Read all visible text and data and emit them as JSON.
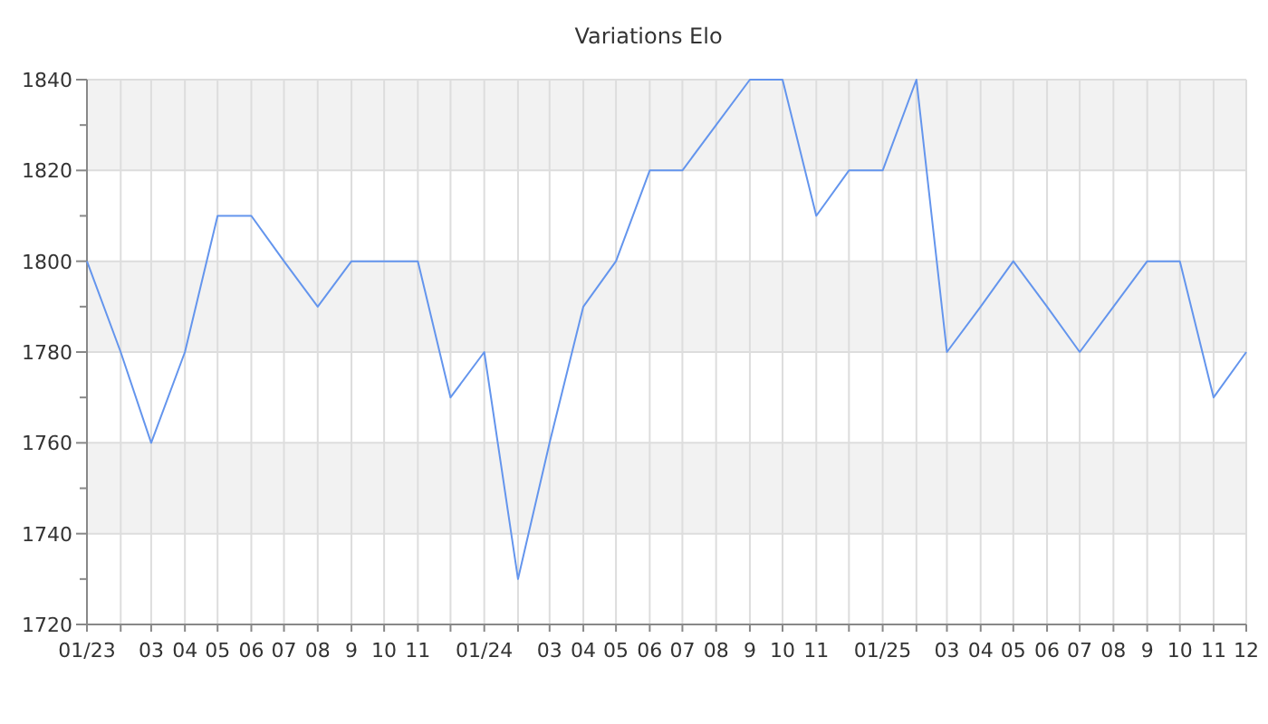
{
  "chart_data": {
    "type": "line",
    "title": "Variations Elo",
    "x": [
      "2023-01",
      "2023-02",
      "2023-03",
      "2023-04",
      "2023-05",
      "2023-06",
      "2023-07",
      "2023-08",
      "2023-09",
      "2023-10",
      "2023-11",
      "2023-12",
      "2024-01",
      "2024-02",
      "2024-03",
      "2024-04",
      "2024-05",
      "2024-06",
      "2024-07",
      "2024-08",
      "2024-09",
      "2024-10",
      "2024-11",
      "2024-12",
      "2025-01",
      "2025-02",
      "2025-03",
      "2025-04",
      "2025-05",
      "2025-06",
      "2025-07",
      "2025-08",
      "2025-09",
      "2025-10",
      "2025-11",
      "2025-12"
    ],
    "series": [
      {
        "color": "#6495ed",
        "values": [
          1800,
          1780,
          1760,
          1780,
          1810,
          1810,
          1800,
          1790,
          1800,
          1800,
          1800,
          1770,
          1780,
          1730,
          1760,
          1790,
          1800,
          1820,
          1820,
          1830,
          1840,
          1840,
          1810,
          1820,
          1820,
          1840,
          1780,
          1790,
          1800,
          1790,
          1780,
          1790,
          1800,
          1800,
          1770,
          1780
        ]
      }
    ],
    "xlim": [
      "2023-01",
      "2025-12"
    ],
    "xticks": [
      {
        "value": "2023-01",
        "label": "01/23"
      },
      {
        "value": "2023-02",
        "label": null
      },
      {
        "value": "2023-03",
        "label": "03"
      },
      {
        "value": "2023-04",
        "label": "04"
      },
      {
        "value": "2023-05",
        "label": "05"
      },
      {
        "value": "2023-06",
        "label": "06"
      },
      {
        "value": "2023-07",
        "label": "07"
      },
      {
        "value": "2023-08",
        "label": "08"
      },
      {
        "value": "2023-09",
        "label": "9"
      },
      {
        "value": "2023-10",
        "label": "10"
      },
      {
        "value": "2023-11",
        "label": "11"
      },
      {
        "value": "2023-12",
        "label": null
      },
      {
        "value": "2024-01",
        "label": "01/24"
      },
      {
        "value": "2024-02",
        "label": null
      },
      {
        "value": "2024-03",
        "label": "03"
      },
      {
        "value": "2024-04",
        "label": "04"
      },
      {
        "value": "2024-05",
        "label": "05"
      },
      {
        "value": "2024-06",
        "label": "06"
      },
      {
        "value": "2024-07",
        "label": "07"
      },
      {
        "value": "2024-08",
        "label": "08"
      },
      {
        "value": "2024-09",
        "label": "9"
      },
      {
        "value": "2024-10",
        "label": "10"
      },
      {
        "value": "2024-11",
        "label": "11"
      },
      {
        "value": "2024-12",
        "label": null
      },
      {
        "value": "2025-01",
        "label": "01/25"
      },
      {
        "value": "2025-02",
        "label": null
      },
      {
        "value": "2025-03",
        "label": "03"
      },
      {
        "value": "2025-04",
        "label": "04"
      },
      {
        "value": "2025-05",
        "label": "05"
      },
      {
        "value": "2025-06",
        "label": "06"
      },
      {
        "value": "2025-07",
        "label": "07"
      },
      {
        "value": "2025-08",
        "label": "08"
      },
      {
        "value": "2025-09",
        "label": "9"
      },
      {
        "value": "2025-10",
        "label": "10"
      },
      {
        "value": "2025-11",
        "label": "11"
      },
      {
        "value": "2025-12",
        "label": "12"
      }
    ],
    "ylim": [
      1720,
      1840
    ],
    "yticks": [
      1720,
      {
        "value": 1730,
        "label": null
      },
      1740,
      {
        "value": 1750,
        "label": null
      },
      1760,
      {
        "value": 1770,
        "label": null
      },
      1780,
      {
        "value": 1790,
        "label": null
      },
      1800,
      {
        "value": 1810,
        "label": null
      },
      1820,
      {
        "value": 1830,
        "label": null
      },
      1840
    ],
    "grid": true,
    "marker": "none",
    "line_style": "solid"
  }
}
